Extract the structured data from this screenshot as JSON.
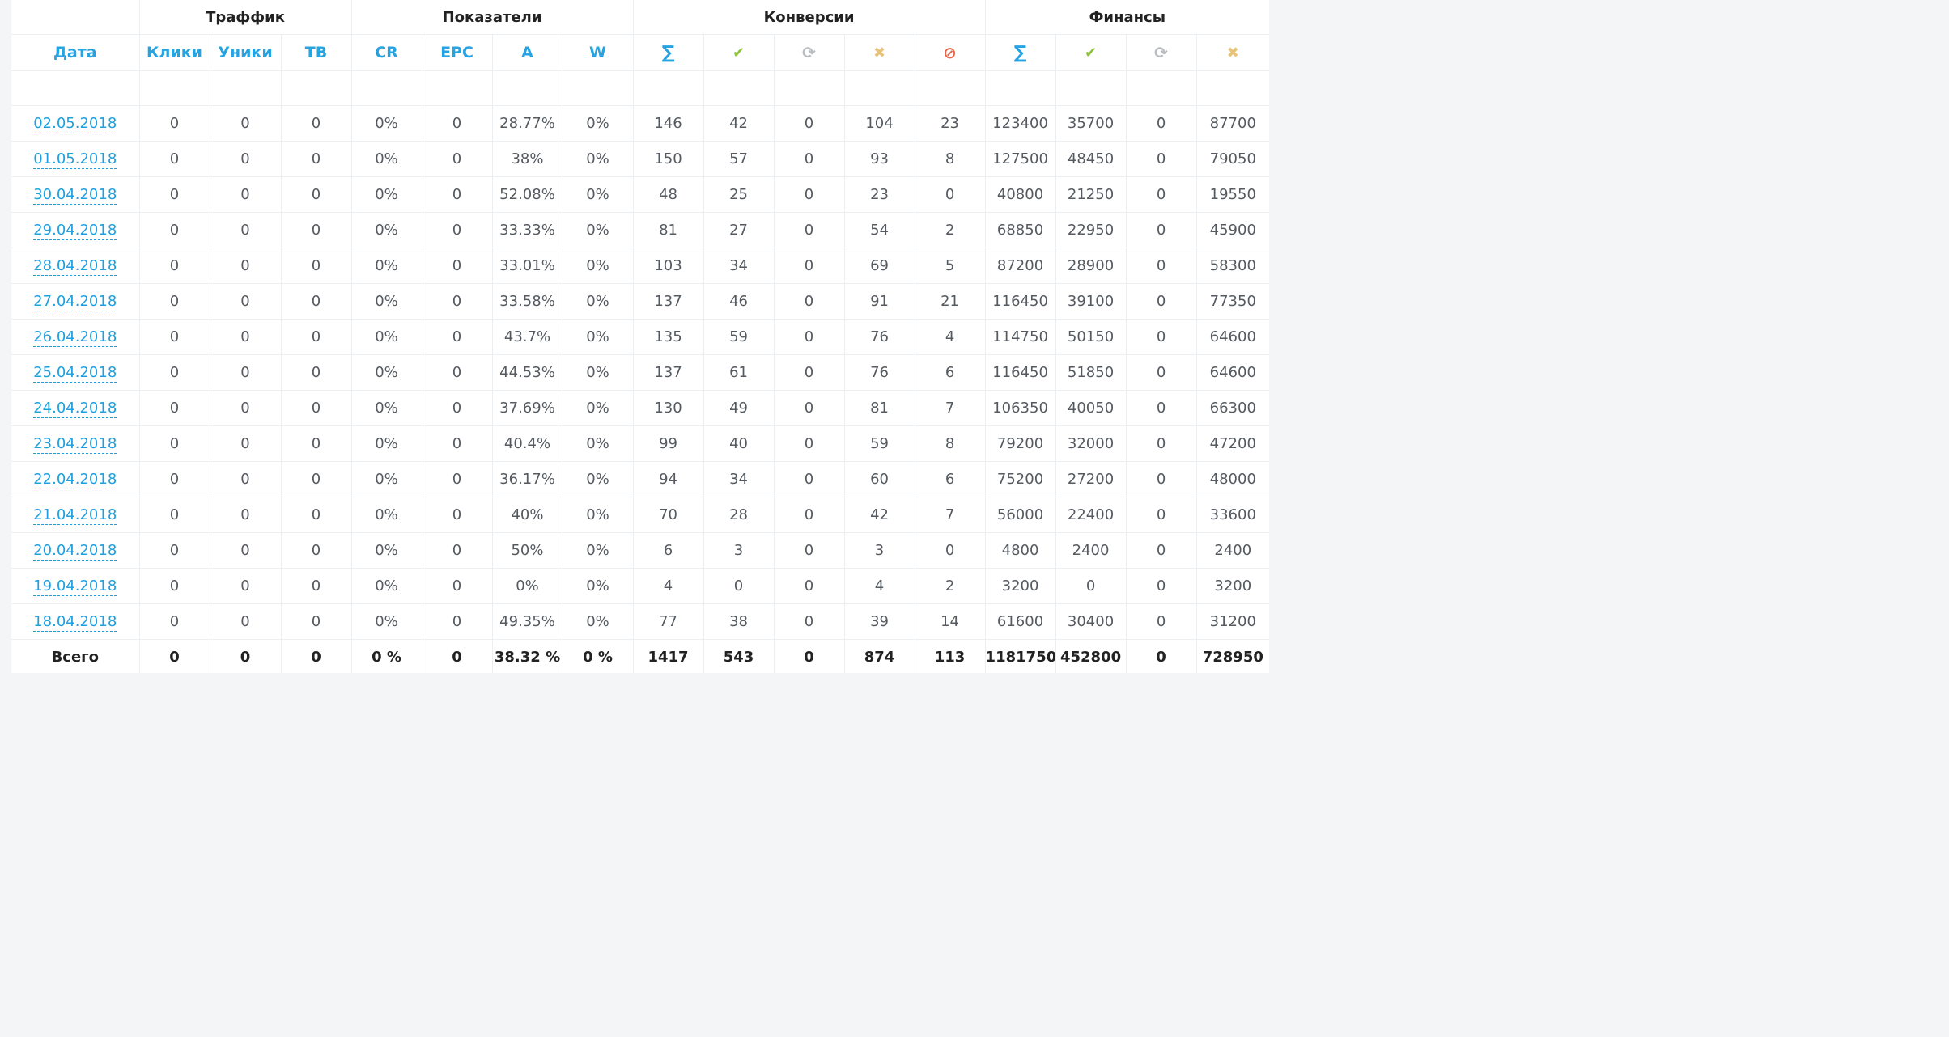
{
  "groups": {
    "traffic": "Траффик",
    "indicators": "Показатели",
    "conversions": "Конверсии",
    "finances": "Финансы"
  },
  "columns": {
    "date": "Дата",
    "clicks": "Клики",
    "uniques": "Уники",
    "tb": "ТВ",
    "cr": "CR",
    "epc": "EPC",
    "a": "A",
    "w": "W",
    "conv_sum": "∑",
    "fin_sum": "∑"
  },
  "icons": {
    "sum": "sum-icon",
    "approved": "check-icon",
    "pending": "refresh-icon",
    "declined": "cross-icon",
    "trash": "ban-icon"
  },
  "rows": [
    {
      "date": "02.05.2018",
      "clicks": "0",
      "uniques": "0",
      "tb": "0",
      "cr": "0%",
      "epc": "0",
      "a": "28.77%",
      "w": "0%",
      "conv_sum": "146",
      "conv_approved": "42",
      "conv_pending": "0",
      "conv_declined": "104",
      "conv_trash": "23",
      "fin_sum": "123400",
      "fin_approved": "35700",
      "fin_pending": "0",
      "fin_declined": "87700"
    },
    {
      "date": "01.05.2018",
      "clicks": "0",
      "uniques": "0",
      "tb": "0",
      "cr": "0%",
      "epc": "0",
      "a": "38%",
      "w": "0%",
      "conv_sum": "150",
      "conv_approved": "57",
      "conv_pending": "0",
      "conv_declined": "93",
      "conv_trash": "8",
      "fin_sum": "127500",
      "fin_approved": "48450",
      "fin_pending": "0",
      "fin_declined": "79050"
    },
    {
      "date": "30.04.2018",
      "clicks": "0",
      "uniques": "0",
      "tb": "0",
      "cr": "0%",
      "epc": "0",
      "a": "52.08%",
      "w": "0%",
      "conv_sum": "48",
      "conv_approved": "25",
      "conv_pending": "0",
      "conv_declined": "23",
      "conv_trash": "0",
      "fin_sum": "40800",
      "fin_approved": "21250",
      "fin_pending": "0",
      "fin_declined": "19550"
    },
    {
      "date": "29.04.2018",
      "clicks": "0",
      "uniques": "0",
      "tb": "0",
      "cr": "0%",
      "epc": "0",
      "a": "33.33%",
      "w": "0%",
      "conv_sum": "81",
      "conv_approved": "27",
      "conv_pending": "0",
      "conv_declined": "54",
      "conv_trash": "2",
      "fin_sum": "68850",
      "fin_approved": "22950",
      "fin_pending": "0",
      "fin_declined": "45900"
    },
    {
      "date": "28.04.2018",
      "clicks": "0",
      "uniques": "0",
      "tb": "0",
      "cr": "0%",
      "epc": "0",
      "a": "33.01%",
      "w": "0%",
      "conv_sum": "103",
      "conv_approved": "34",
      "conv_pending": "0",
      "conv_declined": "69",
      "conv_trash": "5",
      "fin_sum": "87200",
      "fin_approved": "28900",
      "fin_pending": "0",
      "fin_declined": "58300"
    },
    {
      "date": "27.04.2018",
      "clicks": "0",
      "uniques": "0",
      "tb": "0",
      "cr": "0%",
      "epc": "0",
      "a": "33.58%",
      "w": "0%",
      "conv_sum": "137",
      "conv_approved": "46",
      "conv_pending": "0",
      "conv_declined": "91",
      "conv_trash": "21",
      "fin_sum": "116450",
      "fin_approved": "39100",
      "fin_pending": "0",
      "fin_declined": "77350"
    },
    {
      "date": "26.04.2018",
      "clicks": "0",
      "uniques": "0",
      "tb": "0",
      "cr": "0%",
      "epc": "0",
      "a": "43.7%",
      "w": "0%",
      "conv_sum": "135",
      "conv_approved": "59",
      "conv_pending": "0",
      "conv_declined": "76",
      "conv_trash": "4",
      "fin_sum": "114750",
      "fin_approved": "50150",
      "fin_pending": "0",
      "fin_declined": "64600"
    },
    {
      "date": "25.04.2018",
      "clicks": "0",
      "uniques": "0",
      "tb": "0",
      "cr": "0%",
      "epc": "0",
      "a": "44.53%",
      "w": "0%",
      "conv_sum": "137",
      "conv_approved": "61",
      "conv_pending": "0",
      "conv_declined": "76",
      "conv_trash": "6",
      "fin_sum": "116450",
      "fin_approved": "51850",
      "fin_pending": "0",
      "fin_declined": "64600"
    },
    {
      "date": "24.04.2018",
      "clicks": "0",
      "uniques": "0",
      "tb": "0",
      "cr": "0%",
      "epc": "0",
      "a": "37.69%",
      "w": "0%",
      "conv_sum": "130",
      "conv_approved": "49",
      "conv_pending": "0",
      "conv_declined": "81",
      "conv_trash": "7",
      "fin_sum": "106350",
      "fin_approved": "40050",
      "fin_pending": "0",
      "fin_declined": "66300"
    },
    {
      "date": "23.04.2018",
      "clicks": "0",
      "uniques": "0",
      "tb": "0",
      "cr": "0%",
      "epc": "0",
      "a": "40.4%",
      "w": "0%",
      "conv_sum": "99",
      "conv_approved": "40",
      "conv_pending": "0",
      "conv_declined": "59",
      "conv_trash": "8",
      "fin_sum": "79200",
      "fin_approved": "32000",
      "fin_pending": "0",
      "fin_declined": "47200"
    },
    {
      "date": "22.04.2018",
      "clicks": "0",
      "uniques": "0",
      "tb": "0",
      "cr": "0%",
      "epc": "0",
      "a": "36.17%",
      "w": "0%",
      "conv_sum": "94",
      "conv_approved": "34",
      "conv_pending": "0",
      "conv_declined": "60",
      "conv_trash": "6",
      "fin_sum": "75200",
      "fin_approved": "27200",
      "fin_pending": "0",
      "fin_declined": "48000"
    },
    {
      "date": "21.04.2018",
      "clicks": "0",
      "uniques": "0",
      "tb": "0",
      "cr": "0%",
      "epc": "0",
      "a": "40%",
      "w": "0%",
      "conv_sum": "70",
      "conv_approved": "28",
      "conv_pending": "0",
      "conv_declined": "42",
      "conv_trash": "7",
      "fin_sum": "56000",
      "fin_approved": "22400",
      "fin_pending": "0",
      "fin_declined": "33600"
    },
    {
      "date": "20.04.2018",
      "clicks": "0",
      "uniques": "0",
      "tb": "0",
      "cr": "0%",
      "epc": "0",
      "a": "50%",
      "w": "0%",
      "conv_sum": "6",
      "conv_approved": "3",
      "conv_pending": "0",
      "conv_declined": "3",
      "conv_trash": "0",
      "fin_sum": "4800",
      "fin_approved": "2400",
      "fin_pending": "0",
      "fin_declined": "2400"
    },
    {
      "date": "19.04.2018",
      "clicks": "0",
      "uniques": "0",
      "tb": "0",
      "cr": "0%",
      "epc": "0",
      "a": "0%",
      "w": "0%",
      "conv_sum": "4",
      "conv_approved": "0",
      "conv_pending": "0",
      "conv_declined": "4",
      "conv_trash": "2",
      "fin_sum": "3200",
      "fin_approved": "0",
      "fin_pending": "0",
      "fin_declined": "3200"
    },
    {
      "date": "18.04.2018",
      "clicks": "0",
      "uniques": "0",
      "tb": "0",
      "cr": "0%",
      "epc": "0",
      "a": "49.35%",
      "w": "0%",
      "conv_sum": "77",
      "conv_approved": "38",
      "conv_pending": "0",
      "conv_declined": "39",
      "conv_trash": "14",
      "fin_sum": "61600",
      "fin_approved": "30400",
      "fin_pending": "0",
      "fin_declined": "31200"
    }
  ],
  "totals": {
    "label": "Всего",
    "clicks": "0",
    "uniques": "0",
    "tb": "0",
    "cr": "0 %",
    "epc": "0",
    "a": "38.32 %",
    "w": "0 %",
    "conv_sum": "1417",
    "conv_approved": "543",
    "conv_pending": "0",
    "conv_declined": "874",
    "conv_trash": "113",
    "fin_sum": "1181750",
    "fin_approved": "452800",
    "fin_pending": "0",
    "fin_declined": "728950"
  }
}
